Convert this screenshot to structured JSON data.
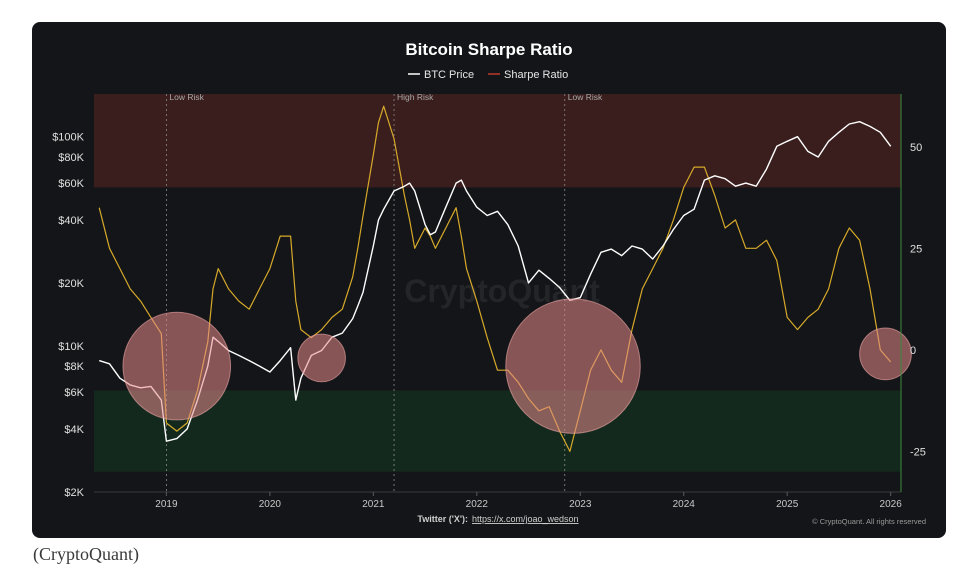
{
  "caption": "(CryptoQuant)",
  "footer": {
    "twitter_label": "Twitter ('X'):",
    "twitter_link": "https://x.com/joao_wedson",
    "copyright": "© CryptoQuant. All rights reserved"
  },
  "watermark": "CryptoQuant",
  "colors": {
    "btc_price": "#ffffff",
    "sharpe_ratio": "#d6a92a",
    "sharpe_legend": "#c0392b",
    "high_risk_zone": "#3a1e1d",
    "low_risk_zone": "#14291e",
    "circle_fill": "#e58a8a",
    "background": "#141518"
  },
  "chart_data": {
    "type": "line",
    "title": "Bitcoin Sharpe Ratio",
    "legend": [
      {
        "name": "BTC Price",
        "color": "#ffffff"
      },
      {
        "name": "Sharpe Ratio",
        "color": "#c0392b"
      }
    ],
    "x_ticks": [
      "2019",
      "2020",
      "2021",
      "2022",
      "2023",
      "2024",
      "2025",
      "2026"
    ],
    "x_range": [
      2018.3,
      2026.1
    ],
    "left_axis": {
      "scale": "log",
      "range": [
        2000,
        160000
      ],
      "ticks": [
        {
          "v": 100000,
          "label": "$100K"
        },
        {
          "v": 80000,
          "label": "$80K"
        },
        {
          "v": 60000,
          "label": "$60K"
        },
        {
          "v": 40000,
          "label": "$40K"
        },
        {
          "v": 20000,
          "label": "$20K"
        },
        {
          "v": 10000,
          "label": "$10K"
        },
        {
          "v": 8000,
          "label": "$8K"
        },
        {
          "v": 6000,
          "label": "$6K"
        },
        {
          "v": 4000,
          "label": "$4K"
        },
        {
          "v": 2000,
          "label": "$2K"
        }
      ]
    },
    "right_axis": {
      "range": [
        -35,
        63
      ],
      "ticks": [
        {
          "v": 50,
          "label": "50"
        },
        {
          "v": 25,
          "label": "25"
        },
        {
          "v": 0,
          "label": "0"
        },
        {
          "v": -25,
          "label": "-25"
        }
      ]
    },
    "zones": [
      {
        "name": "high-risk-zone",
        "from": 40,
        "to": 63
      },
      {
        "name": "low-risk-zone",
        "from": -30,
        "to": -10
      }
    ],
    "events": [
      {
        "label": "Low Risk",
        "x": 2019.0
      },
      {
        "label": "High Risk",
        "x": 2021.2
      },
      {
        "label": "Low Risk",
        "x": 2022.85
      }
    ],
    "circles": [
      {
        "name": "circle-2019-bottom",
        "cx": 2019.1,
        "cy": -4,
        "r_years": 0.52
      },
      {
        "name": "circle-2020-mid",
        "cx": 2020.5,
        "cy": -2,
        "r_years": 0.23
      },
      {
        "name": "circle-2022-bottom",
        "cx": 2022.93,
        "cy": -4,
        "r_years": 0.65
      },
      {
        "name": "circle-2026-now",
        "cx": 2025.95,
        "cy": -1,
        "r_years": 0.25
      }
    ],
    "series": [
      {
        "name": "BTC Price",
        "axis": "left",
        "x": [
          2018.35,
          2018.45,
          2018.55,
          2018.65,
          2018.75,
          2018.85,
          2018.95,
          2019.0,
          2019.1,
          2019.2,
          2019.3,
          2019.4,
          2019.45,
          2019.5,
          2019.6,
          2019.7,
          2019.8,
          2019.9,
          2020.0,
          2020.1,
          2020.2,
          2020.25,
          2020.3,
          2020.4,
          2020.5,
          2020.6,
          2020.7,
          2020.8,
          2020.85,
          2020.9,
          2021.0,
          2021.05,
          2021.1,
          2021.2,
          2021.3,
          2021.35,
          2021.4,
          2021.5,
          2021.55,
          2021.6,
          2021.7,
          2021.8,
          2021.85,
          2021.9,
          2022.0,
          2022.1,
          2022.2,
          2022.3,
          2022.4,
          2022.5,
          2022.6,
          2022.7,
          2022.8,
          2022.9,
          2023.0,
          2023.1,
          2023.2,
          2023.3,
          2023.4,
          2023.5,
          2023.6,
          2023.7,
          2023.8,
          2023.9,
          2024.0,
          2024.1,
          2024.2,
          2024.3,
          2024.4,
          2024.5,
          2024.6,
          2024.7,
          2024.8,
          2024.9,
          2025.0,
          2025.1,
          2025.2,
          2025.3,
          2025.4,
          2025.5,
          2025.6,
          2025.7,
          2025.8,
          2025.9,
          2026.0
        ],
        "values": [
          8500,
          8200,
          7000,
          6500,
          6300,
          6400,
          5500,
          3500,
          3600,
          4000,
          5500,
          8000,
          11000,
          10500,
          9500,
          9000,
          8500,
          8000,
          7500,
          8500,
          9800,
          5500,
          7000,
          9000,
          9500,
          11000,
          11500,
          13500,
          15500,
          18000,
          30000,
          40000,
          45000,
          55000,
          58000,
          60000,
          55000,
          38000,
          34000,
          35000,
          46000,
          60000,
          62000,
          55000,
          46000,
          42000,
          44000,
          38000,
          30000,
          20000,
          23000,
          21000,
          19000,
          16500,
          17000,
          22000,
          28000,
          29000,
          27000,
          30000,
          29000,
          26000,
          30000,
          36000,
          42000,
          45000,
          62000,
          65000,
          63000,
          58000,
          60000,
          58000,
          70000,
          90000,
          95000,
          100000,
          85000,
          80000,
          95000,
          105000,
          115000,
          118000,
          112000,
          105000,
          90000
        ]
      },
      {
        "name": "Sharpe Ratio",
        "axis": "right",
        "x": [
          2018.35,
          2018.45,
          2018.55,
          2018.65,
          2018.75,
          2018.85,
          2018.95,
          2019.0,
          2019.1,
          2019.2,
          2019.3,
          2019.4,
          2019.45,
          2019.5,
          2019.6,
          2019.7,
          2019.8,
          2019.9,
          2020.0,
          2020.1,
          2020.2,
          2020.25,
          2020.3,
          2020.4,
          2020.5,
          2020.6,
          2020.7,
          2020.8,
          2020.85,
          2020.9,
          2021.0,
          2021.05,
          2021.1,
          2021.2,
          2021.3,
          2021.35,
          2021.4,
          2021.5,
          2021.55,
          2021.6,
          2021.7,
          2021.8,
          2021.85,
          2021.9,
          2022.0,
          2022.1,
          2022.2,
          2022.3,
          2022.4,
          2022.5,
          2022.6,
          2022.7,
          2022.8,
          2022.9,
          2023.0,
          2023.1,
          2023.2,
          2023.3,
          2023.4,
          2023.5,
          2023.6,
          2023.7,
          2023.8,
          2023.9,
          2024.0,
          2024.1,
          2024.2,
          2024.3,
          2024.4,
          2024.5,
          2024.6,
          2024.7,
          2024.8,
          2024.9,
          2025.0,
          2025.1,
          2025.2,
          2025.3,
          2025.4,
          2025.5,
          2025.6,
          2025.7,
          2025.8,
          2025.9,
          2026.0
        ],
        "values": [
          35,
          25,
          20,
          15,
          12,
          8,
          4,
          -18,
          -20,
          -18,
          -10,
          2,
          15,
          20,
          15,
          12,
          10,
          15,
          20,
          28,
          28,
          12,
          5,
          3,
          5,
          8,
          10,
          18,
          25,
          33,
          48,
          56,
          60,
          52,
          38,
          32,
          25,
          30,
          28,
          25,
          30,
          35,
          28,
          20,
          12,
          3,
          -5,
          -5,
          -8,
          -12,
          -15,
          -14,
          -20,
          -25,
          -15,
          -5,
          0,
          -5,
          -8,
          5,
          15,
          20,
          25,
          32,
          40,
          45,
          45,
          38,
          30,
          32,
          25,
          25,
          27,
          22,
          8,
          5,
          8,
          10,
          15,
          25,
          30,
          27,
          15,
          0,
          -3
        ]
      }
    ]
  }
}
